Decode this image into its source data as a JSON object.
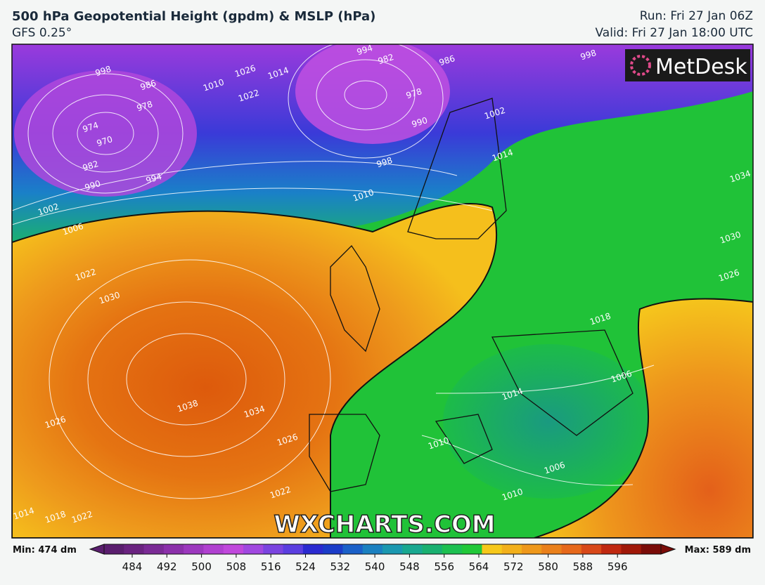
{
  "header": {
    "title": "500 hPa Geopotential Height (gpdm) & MSLP (hPa)",
    "subtitle": "GFS 0.25°",
    "run": "Run: Fri 27 Jan 06Z",
    "valid": "Valid: Fri 27 Jan 18:00 UTC"
  },
  "logo": "MetDesk",
  "watermark": "WXCHARTS.COM",
  "isobar_labels": [
    "998",
    "974",
    "970",
    "978",
    "986",
    "982",
    "990",
    "994",
    "1026",
    "1022",
    "1014",
    "1010",
    "994",
    "982",
    "986",
    "978",
    "990",
    "998",
    "1010",
    "1002",
    "1006",
    "1002",
    "1014",
    "998",
    "1034",
    "1030",
    "1026",
    "1022",
    "1030",
    "1038",
    "1034",
    "1026",
    "1026",
    "1022",
    "1022",
    "1018",
    "1014",
    "1018",
    "1014",
    "1006",
    "1010",
    "1006",
    "1010"
  ],
  "colorbar": {
    "min": "Min: 474 dm",
    "max": "Max: 589 dm",
    "ticks": [
      484,
      492,
      500,
      508,
      516,
      524,
      532,
      540,
      548,
      556,
      564,
      572,
      580,
      588,
      596
    ],
    "colors": [
      "#5a1e6e",
      "#6a2380",
      "#7a2a95",
      "#8b30aa",
      "#9c38be",
      "#b040d0",
      "#c048dc",
      "#a048e0",
      "#7a44e0",
      "#5a3ee0",
      "#2a2ad0",
      "#1a3cc8",
      "#1a60c8",
      "#1a80c0",
      "#1a98b0",
      "#18a890",
      "#18b070",
      "#1cc050",
      "#20c838",
      "#f6c81a",
      "#f2b01a",
      "#ee981a",
      "#ea801a",
      "#e6681a",
      "#d84818",
      "#c02810",
      "#a01808",
      "#7a0c08"
    ]
  }
}
